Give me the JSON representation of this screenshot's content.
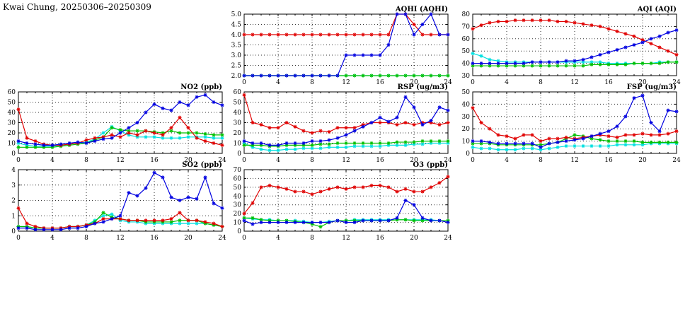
{
  "page": {
    "title": "Kwai Chung, 20250306–20250309"
  },
  "chart_data": [
    {
      "id": "aqhi",
      "type": "line",
      "title": "AQHI (AQHI)",
      "xlim": [
        0,
        24
      ],
      "xticks": [
        0,
        4,
        8,
        12,
        16,
        20,
        24
      ],
      "ylim": [
        2,
        5
      ],
      "ytick_step": 0.5,
      "ytick_decimals": 1,
      "grid": true,
      "series": [
        {
          "name": "cyan",
          "color": "#00e0e0",
          "values": [
            2,
            2,
            2,
            2,
            2,
            2,
            2,
            2,
            2,
            2,
            2,
            2,
            2,
            2,
            2,
            2,
            2,
            2,
            2,
            2,
            2,
            2,
            2,
            2,
            2
          ]
        },
        {
          "name": "green",
          "color": "#00c000",
          "values": [
            2,
            2,
            2,
            2,
            2,
            2,
            2,
            2,
            2,
            2,
            2,
            2,
            2,
            2,
            2,
            2,
            2,
            2,
            2,
            2,
            2,
            2,
            2,
            2,
            2
          ]
        },
        {
          "name": "red",
          "color": "#e00000",
          "values": [
            4,
            4,
            4,
            4,
            4,
            4,
            4,
            4,
            4,
            4,
            4,
            4,
            4,
            4,
            4,
            4,
            4,
            4,
            5,
            5,
            4.5,
            4,
            4,
            4,
            4
          ]
        },
        {
          "name": "blue",
          "color": "#0000e0",
          "values": [
            2,
            2,
            2,
            2,
            2,
            2,
            2,
            2,
            2,
            2,
            2,
            2,
            3,
            3,
            3,
            3,
            3,
            3.5,
            5,
            5,
            4,
            4.5,
            5,
            4,
            4
          ]
        }
      ]
    },
    {
      "id": "aqi",
      "type": "line",
      "title": "AQI (AQI)",
      "xlim": [
        0,
        24
      ],
      "xticks": [
        0,
        4,
        8,
        12,
        16,
        20,
        24
      ],
      "ylim": [
        30,
        80
      ],
      "ytick_step": 10,
      "ytick_decimals": 0,
      "grid": true,
      "series": [
        {
          "name": "cyan",
          "color": "#00e0e0",
          "values": [
            48,
            46,
            43,
            42,
            41,
            41,
            41,
            41,
            41,
            41,
            41,
            41,
            41,
            41,
            41,
            41,
            40,
            40,
            40,
            40,
            40,
            40,
            41,
            41,
            41
          ]
        },
        {
          "name": "green",
          "color": "#00c000",
          "values": [
            38,
            38,
            38,
            38,
            38,
            38,
            38,
            38,
            38,
            38,
            38,
            38,
            38,
            38,
            39,
            39,
            39,
            39,
            39,
            40,
            40,
            40,
            40,
            41,
            41
          ]
        },
        {
          "name": "red",
          "color": "#e00000",
          "values": [
            68,
            71,
            73,
            74,
            74,
            75,
            75,
            75,
            75,
            75,
            74,
            74,
            73,
            72,
            71,
            70,
            68,
            66,
            64,
            62,
            59,
            56,
            53,
            50,
            47
          ]
        },
        {
          "name": "blue",
          "color": "#0000e0",
          "values": [
            40,
            40,
            40,
            40,
            40,
            40,
            40,
            41,
            41,
            41,
            41,
            42,
            42,
            43,
            45,
            47,
            49,
            51,
            53,
            55,
            57,
            60,
            62,
            65,
            67
          ]
        }
      ]
    },
    {
      "id": "no2",
      "type": "line",
      "title": "NO2 (ppb)",
      "xlim": [
        0,
        24
      ],
      "xticks": [
        0,
        4,
        8,
        12,
        16,
        20,
        24
      ],
      "ylim": [
        0,
        60
      ],
      "ytick_step": 10,
      "ytick_decimals": 0,
      "grid": true,
      "series": [
        {
          "name": "cyan",
          "color": "#00e0e0",
          "values": [
            10,
            8,
            7,
            7,
            7,
            8,
            9,
            10,
            11,
            14,
            20,
            26,
            22,
            18,
            16,
            16,
            16,
            15,
            15,
            15,
            16,
            16,
            16,
            15,
            15
          ]
        },
        {
          "name": "green",
          "color": "#00c000",
          "values": [
            6,
            6,
            6,
            6,
            6,
            7,
            8,
            9,
            10,
            13,
            16,
            25,
            23,
            22,
            22,
            22,
            21,
            20,
            22,
            20,
            20,
            20,
            19,
            18,
            18
          ]
        },
        {
          "name": "red",
          "color": "#e00000",
          "values": [
            43,
            15,
            12,
            9,
            8,
            8,
            9,
            10,
            13,
            15,
            16,
            18,
            16,
            20,
            18,
            22,
            20,
            18,
            25,
            35,
            25,
            15,
            12,
            10,
            8
          ]
        },
        {
          "name": "blue",
          "color": "#0000e0",
          "values": [
            12,
            10,
            9,
            8,
            8,
            9,
            10,
            11,
            10,
            12,
            14,
            15,
            20,
            25,
            30,
            40,
            48,
            44,
            42,
            50,
            47,
            55,
            57,
            50,
            47
          ]
        }
      ]
    },
    {
      "id": "rsp",
      "type": "line",
      "title": "RSP (ug/m3)",
      "xlim": [
        0,
        24
      ],
      "xticks": [
        0,
        4,
        8,
        12,
        16,
        20,
        24
      ],
      "ylim": [
        0,
        60
      ],
      "ytick_step": 10,
      "ytick_decimals": 0,
      "grid": true,
      "series": [
        {
          "name": "cyan",
          "color": "#00e0e0",
          "values": [
            10,
            6,
            4,
            3,
            3,
            4,
            4,
            5,
            5,
            5,
            6,
            6,
            6,
            7,
            7,
            7,
            7,
            8,
            8,
            8,
            9,
            9,
            10,
            10,
            10
          ]
        },
        {
          "name": "green",
          "color": "#00c000",
          "values": [
            8,
            8,
            8,
            7,
            7,
            8,
            8,
            8,
            8,
            9,
            9,
            10,
            10,
            10,
            10,
            10,
            10,
            10,
            11,
            11,
            11,
            12,
            12,
            12,
            12
          ]
        },
        {
          "name": "red",
          "color": "#e00000",
          "values": [
            57,
            30,
            28,
            25,
            25,
            30,
            26,
            22,
            20,
            22,
            21,
            25,
            25,
            25,
            28,
            30,
            30,
            30,
            28,
            30,
            28,
            30,
            30,
            28,
            30
          ]
        },
        {
          "name": "blue",
          "color": "#0000e0",
          "values": [
            12,
            10,
            10,
            8,
            8,
            10,
            10,
            10,
            12,
            12,
            13,
            15,
            18,
            22,
            26,
            30,
            35,
            31,
            35,
            55,
            45,
            28,
            32,
            45,
            42
          ]
        }
      ]
    },
    {
      "id": "fsp",
      "type": "line",
      "title": "FSP (ug/m3)",
      "xlim": [
        0,
        24
      ],
      "xticks": [
        0,
        4,
        8,
        12,
        16,
        20,
        24
      ],
      "ylim": [
        0,
        50
      ],
      "ytick_step": 10,
      "ytick_decimals": 0,
      "grid": true,
      "series": [
        {
          "name": "cyan",
          "color": "#00e0e0",
          "values": [
            5,
            4,
            4,
            3,
            3,
            3,
            4,
            4,
            3,
            4,
            5,
            6,
            6,
            6,
            6,
            6,
            6,
            7,
            7,
            7,
            7,
            8,
            8,
            8,
            8
          ]
        },
        {
          "name": "green",
          "color": "#00c000",
          "values": [
            8,
            8,
            8,
            7,
            7,
            7,
            7,
            7,
            7,
            8,
            9,
            12,
            15,
            14,
            12,
            11,
            10,
            10,
            10,
            10,
            9,
            9,
            9,
            9,
            9
          ]
        },
        {
          "name": "red",
          "color": "#e00000",
          "values": [
            37,
            25,
            20,
            15,
            14,
            12,
            15,
            15,
            10,
            12,
            12,
            13,
            12,
            13,
            14,
            15,
            14,
            13,
            15,
            15,
            16,
            15,
            15,
            16,
            18
          ]
        },
        {
          "name": "blue",
          "color": "#0000e0",
          "values": [
            10,
            10,
            9,
            8,
            8,
            8,
            8,
            8,
            5,
            8,
            9,
            10,
            11,
            12,
            14,
            16,
            18,
            22,
            30,
            45,
            47,
            25,
            18,
            35,
            34
          ]
        }
      ]
    },
    {
      "id": "so2",
      "type": "line",
      "title": "SO2 (ppb)",
      "xlim": [
        0,
        24
      ],
      "xticks": [
        0,
        4,
        8,
        12,
        16,
        20,
        24
      ],
      "ylim": [
        0,
        4
      ],
      "ytick_step": 1,
      "ytick_decimals": 0,
      "grid": true,
      "series": [
        {
          "name": "cyan",
          "color": "#00e0e0",
          "values": [
            0.3,
            0.3,
            0.2,
            0.2,
            0.2,
            0.2,
            0.3,
            0.3,
            0.4,
            0.7,
            1.0,
            1.1,
            0.7,
            0.6,
            0.6,
            0.5,
            0.5,
            0.5,
            0.5,
            0.5,
            0.5,
            0.5,
            0.5,
            0.4,
            0.3
          ]
        },
        {
          "name": "green",
          "color": "#00c000",
          "values": [
            0.3,
            0.3,
            0.2,
            0.2,
            0.2,
            0.2,
            0.3,
            0.3,
            0.4,
            0.6,
            1.2,
            0.9,
            0.8,
            0.7,
            0.7,
            0.6,
            0.6,
            0.6,
            0.6,
            0.7,
            0.7,
            0.7,
            0.5,
            0.4,
            0.3
          ]
        },
        {
          "name": "red",
          "color": "#e00000",
          "values": [
            1.5,
            0.5,
            0.3,
            0.2,
            0.2,
            0.2,
            0.3,
            0.3,
            0.4,
            0.5,
            0.8,
            0.8,
            0.8,
            0.7,
            0.7,
            0.7,
            0.7,
            0.7,
            0.8,
            1.2,
            0.7,
            0.7,
            0.6,
            0.5,
            0.3
          ]
        },
        {
          "name": "blue",
          "color": "#0000e0",
          "values": [
            0.2,
            0.2,
            0.1,
            0.1,
            0.1,
            0.1,
            0.2,
            0.2,
            0.3,
            0.5,
            0.6,
            0.8,
            1.0,
            2.5,
            2.3,
            2.8,
            3.8,
            3.5,
            2.2,
            2.0,
            2.2,
            2.1,
            3.5,
            1.8,
            1.5
          ]
        }
      ]
    },
    {
      "id": "o3",
      "type": "line",
      "title": "O3 (ppb)",
      "xlim": [
        0,
        24
      ],
      "xticks": [
        0,
        4,
        8,
        12,
        16,
        20,
        24
      ],
      "ylim": [
        0,
        70
      ],
      "ytick_step": 10,
      "ytick_decimals": 0,
      "grid": true,
      "series": [
        {
          "name": "cyan",
          "color": "#00e0e0",
          "values": [
            15,
            14,
            13,
            13,
            12,
            12,
            12,
            11,
            10,
            10,
            11,
            12,
            12,
            13,
            13,
            13,
            13,
            13,
            13,
            13,
            13,
            13,
            13,
            12,
            12
          ]
        },
        {
          "name": "green",
          "color": "#00c000",
          "values": [
            15,
            15,
            13,
            12,
            12,
            12,
            11,
            10,
            8,
            5,
            10,
            12,
            12,
            12,
            12,
            12,
            12,
            12,
            13,
            13,
            12,
            12,
            12,
            12,
            12
          ]
        },
        {
          "name": "red",
          "color": "#e00000",
          "values": [
            20,
            32,
            50,
            52,
            50,
            48,
            45,
            45,
            42,
            45,
            48,
            50,
            48,
            50,
            50,
            52,
            52,
            50,
            45,
            48,
            45,
            45,
            50,
            55,
            62
          ]
        },
        {
          "name": "blue",
          "color": "#0000e0",
          "values": [
            12,
            8,
            10,
            10,
            10,
            10,
            10,
            10,
            10,
            10,
            10,
            12,
            10,
            10,
            12,
            12,
            12,
            12,
            15,
            35,
            30,
            15,
            12,
            12,
            10
          ]
        }
      ]
    }
  ]
}
